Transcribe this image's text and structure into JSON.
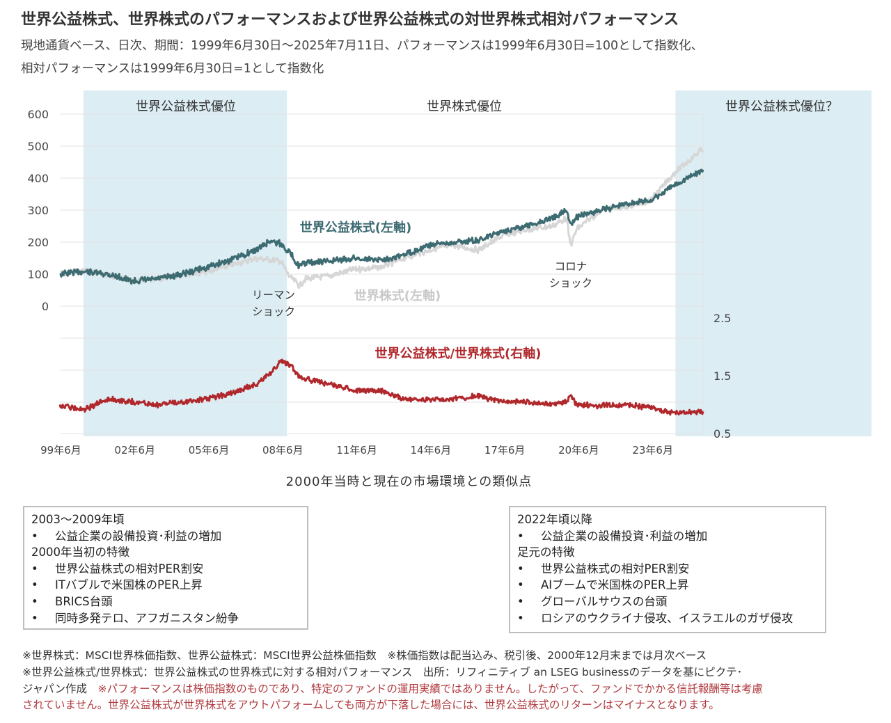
{
  "header": {
    "title": "世界公益株式、世界株式のパフォーマンスおよび世界公益株式の対世界株式相対パフォーマンス",
    "subtitle_line1": "現地通貨ベース、日次、期間：1999年6月30日～2025年7月11日、パフォーマンスは1999年6月30日=100として指数化、",
    "subtitle_line2": "相対パフォーマンスは1999年6月30日=1として指数化"
  },
  "chart_data": {
    "type": "line",
    "x": [
      "1999-06",
      "2000-06",
      "2001-06",
      "2002-06",
      "2003-06",
      "2004-06",
      "2005-06",
      "2006-06",
      "2007-06",
      "2008-01",
      "2008-06",
      "2008-10",
      "2009-03",
      "2009-06",
      "2010-06",
      "2011-06",
      "2012-06",
      "2013-06",
      "2014-06",
      "2015-06",
      "2016-06",
      "2017-06",
      "2018-06",
      "2019-06",
      "2020-01",
      "2020-03",
      "2020-06",
      "2021-06",
      "2022-06",
      "2023-06",
      "2024-06",
      "2025-07"
    ],
    "x_tick_labels": [
      "99年6月",
      "02年6月",
      "05年6月",
      "08年6月",
      "11年6月",
      "14年6月",
      "17年6月",
      "20年6月",
      "23年6月"
    ],
    "series": [
      {
        "name": "世界公益株式(左軸)",
        "axis": "left",
        "color": "#3d6b72",
        "values": [
          100,
          108,
          100,
          78,
          85,
          100,
          122,
          145,
          175,
          205,
          195,
          170,
          125,
          135,
          140,
          150,
          145,
          160,
          190,
          200,
          205,
          235,
          250,
          275,
          300,
          255,
          280,
          300,
          320,
          330,
          380,
          425
        ]
      },
      {
        "name": "世界株式(左軸)",
        "axis": "left",
        "color": "#d6d6d6",
        "values": [
          100,
          112,
          98,
          80,
          82,
          100,
          108,
          128,
          150,
          145,
          140,
          95,
          65,
          85,
          95,
          115,
          120,
          150,
          175,
          190,
          175,
          220,
          240,
          250,
          275,
          190,
          240,
          300,
          310,
          330,
          420,
          490
        ]
      },
      {
        "name": "世界公益株式/世界株式(右軸)",
        "axis": "right",
        "color": "#b0282c",
        "values": [
          1.0,
          0.9,
          1.1,
          1.05,
          1.0,
          1.05,
          1.1,
          1.2,
          1.35,
          1.55,
          1.75,
          1.7,
          1.5,
          1.45,
          1.35,
          1.25,
          1.25,
          1.1,
          1.08,
          1.1,
          1.15,
          1.05,
          1.05,
          1.0,
          1.05,
          1.15,
          1.0,
          0.98,
          1.0,
          0.95,
          0.85,
          0.88
        ]
      }
    ],
    "left_axis": {
      "ticks": [
        0,
        100,
        200,
        300,
        400,
        500,
        600
      ],
      "ylim": [
        0,
        600
      ]
    },
    "right_axis": {
      "ticks": [
        0.5,
        1.5,
        2.5
      ],
      "ylim": [
        0.5,
        3.0
      ]
    },
    "shaded_periods": [
      {
        "label": "世界公益株式優位",
        "from": "2000-06",
        "to": "2008-09"
      },
      {
        "label": "世界公益株式優位？",
        "from": "2024-01",
        "to": "2025-07"
      }
    ],
    "middle_label": "世界株式優位",
    "annotations": [
      {
        "text_lines": [
          "リーマン",
          "ショック"
        ]
      },
      {
        "text_lines": [
          "コロナ",
          "ショック"
        ]
      }
    ],
    "grid": true
  },
  "section_title": "2000年当時と現在の市場環境との類似点",
  "box_left": {
    "lines": [
      {
        "kind": "head",
        "text": "2003～2009年頃"
      },
      {
        "kind": "bullet",
        "text": "公益企業の設備投資･利益の増加"
      },
      {
        "kind": "head",
        "text": "2000年当初の特徴"
      },
      {
        "kind": "bullet",
        "text": "世界公益株式の相対PER割安"
      },
      {
        "kind": "bullet",
        "text": "ITバブルで米国株のPER上昇"
      },
      {
        "kind": "bullet",
        "text": "BRICS台頭"
      },
      {
        "kind": "bullet",
        "text": "同時多発テロ、アフガニスタン紛争"
      }
    ]
  },
  "box_right": {
    "lines": [
      {
        "kind": "head",
        "text": "2022年頃以降"
      },
      {
        "kind": "bullet",
        "text": "公益企業の設備投資･利益の増加"
      },
      {
        "kind": "head",
        "text": "足元の特徴"
      },
      {
        "kind": "bullet",
        "text": "世界公益株式の相対PER割安"
      },
      {
        "kind": "bullet",
        "text": "AIブームで米国株のPER上昇"
      },
      {
        "kind": "bullet",
        "text": "グローバルサウスの台頭"
      },
      {
        "kind": "bullet",
        "text": "ロシアのウクライナ侵攻、イスラエルのガザ侵攻"
      }
    ]
  },
  "bullet_char": "•",
  "footnotes": {
    "line1": "※世界株式：MSCI世界株価指数、世界公益株式：MSCI世界公益株価指数　※株価指数は配当込み、税引後、2000年12月末までは月次ベース",
    "line2": "※世界公益株式/世界株式：世界公益株式の世界株式に対する相対パフォーマンス　出所：リフィニティブ an LSEG businessのデータを基にピクテ･",
    "line3_black": "ジャパン作成　",
    "line3_red": "※パフォーマンスは株価指数のものであり、特定のファンドの運用実績ではありません。したがって、ファンドでかかる信託報酬等は考慮",
    "line4_red": "されていません。世界公益株式が世界株式をアウトパフォームしても両方が下落した場合には、世界公益株式のリターンはマイナスとなります。"
  },
  "colors": {
    "utility": "#3d6b72",
    "world": "#d6d6d6",
    "ratio": "#b0282c",
    "shade": "#dcedf4",
    "note_red": "#b03a3e"
  }
}
